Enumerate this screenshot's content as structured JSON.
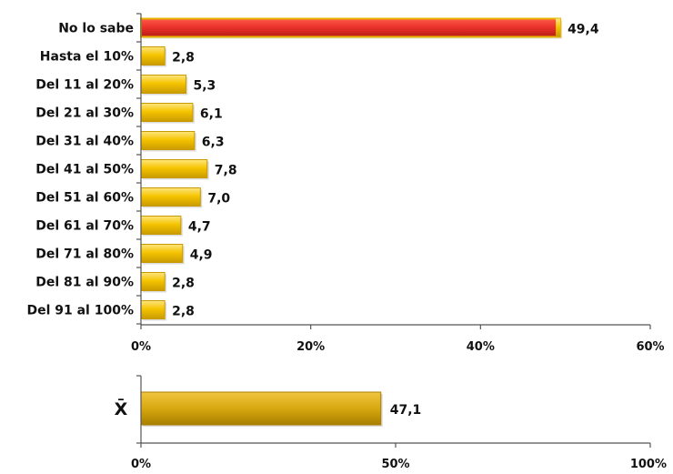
{
  "chart_data": [
    {
      "type": "bar",
      "orientation": "horizontal",
      "categories": [
        "No lo sabe",
        "Hasta el 10%",
        "Del 11 al 20%",
        "Del 21 al 30%",
        "Del 31 al 40%",
        "Del 41 al 50%",
        "Del 51 al 60%",
        "Del 61 al 70%",
        "Del 71 al 80%",
        "Del 81 al 90%",
        "Del 91 al 100%"
      ],
      "values": [
        49.4,
        2.8,
        5.3,
        6.1,
        6.3,
        7.8,
        7.0,
        4.7,
        4.9,
        2.8,
        2.8
      ],
      "value_labels": [
        "49,4",
        "2,8",
        "5,3",
        "6,1",
        "6,3",
        "7,8",
        "7,0",
        "4,7",
        "4,9",
        "2,8",
        "2,8"
      ],
      "xlim": [
        0,
        60
      ],
      "xticks": [
        "0%",
        "20%",
        "40%",
        "60%"
      ],
      "grid": false,
      "colors": {
        "highlight": "#e8302a",
        "highlight_edge": "#e8b400",
        "bar": "#f5c400",
        "bar_light": "#ffe066",
        "bar_dark": "#c99a00"
      }
    },
    {
      "type": "bar",
      "orientation": "horizontal",
      "categories": [
        "X̄"
      ],
      "values": [
        47.1
      ],
      "value_labels": [
        "47,1"
      ],
      "xlim": [
        0,
        100
      ],
      "xticks": [
        "0%",
        "50%",
        "100%"
      ],
      "grid": false,
      "colors": {
        "bar": "#d8a810",
        "bar_light": "#f0c540",
        "bar_dark": "#a87e00"
      }
    }
  ]
}
